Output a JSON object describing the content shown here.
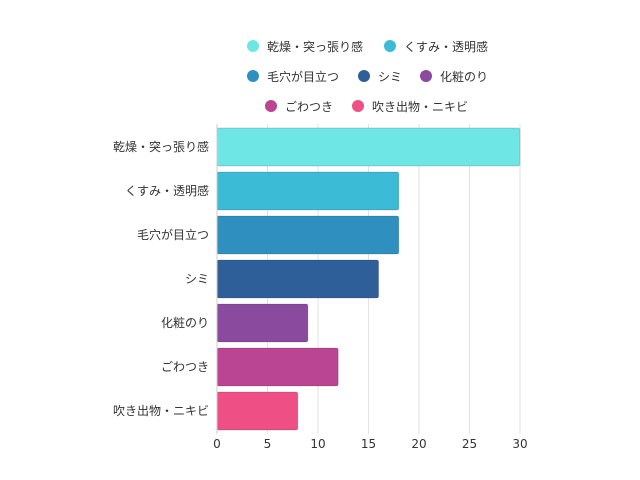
{
  "chart_data": {
    "type": "bar",
    "orientation": "horizontal",
    "categories": [
      "乾燥・突っ張り感",
      "くすみ・透明感",
      "毛穴が目立つ",
      "シミ",
      "化粧のり",
      "ごわつき",
      "吹き出物・ニキビ"
    ],
    "values": [
      30,
      18,
      18,
      16,
      9,
      12,
      8
    ],
    "colors": [
      "#6ee6e6",
      "#3bbbd6",
      "#2f8fbf",
      "#2f5f99",
      "#8a4a9e",
      "#b94593",
      "#ee4f85"
    ],
    "xlim": [
      0,
      30
    ],
    "xticks": [
      "0",
      "5",
      "10",
      "15",
      "20",
      "25",
      "30"
    ],
    "title": "",
    "xlabel": "",
    "ylabel": "",
    "grid": "vertical",
    "legend_position": "top-center"
  }
}
